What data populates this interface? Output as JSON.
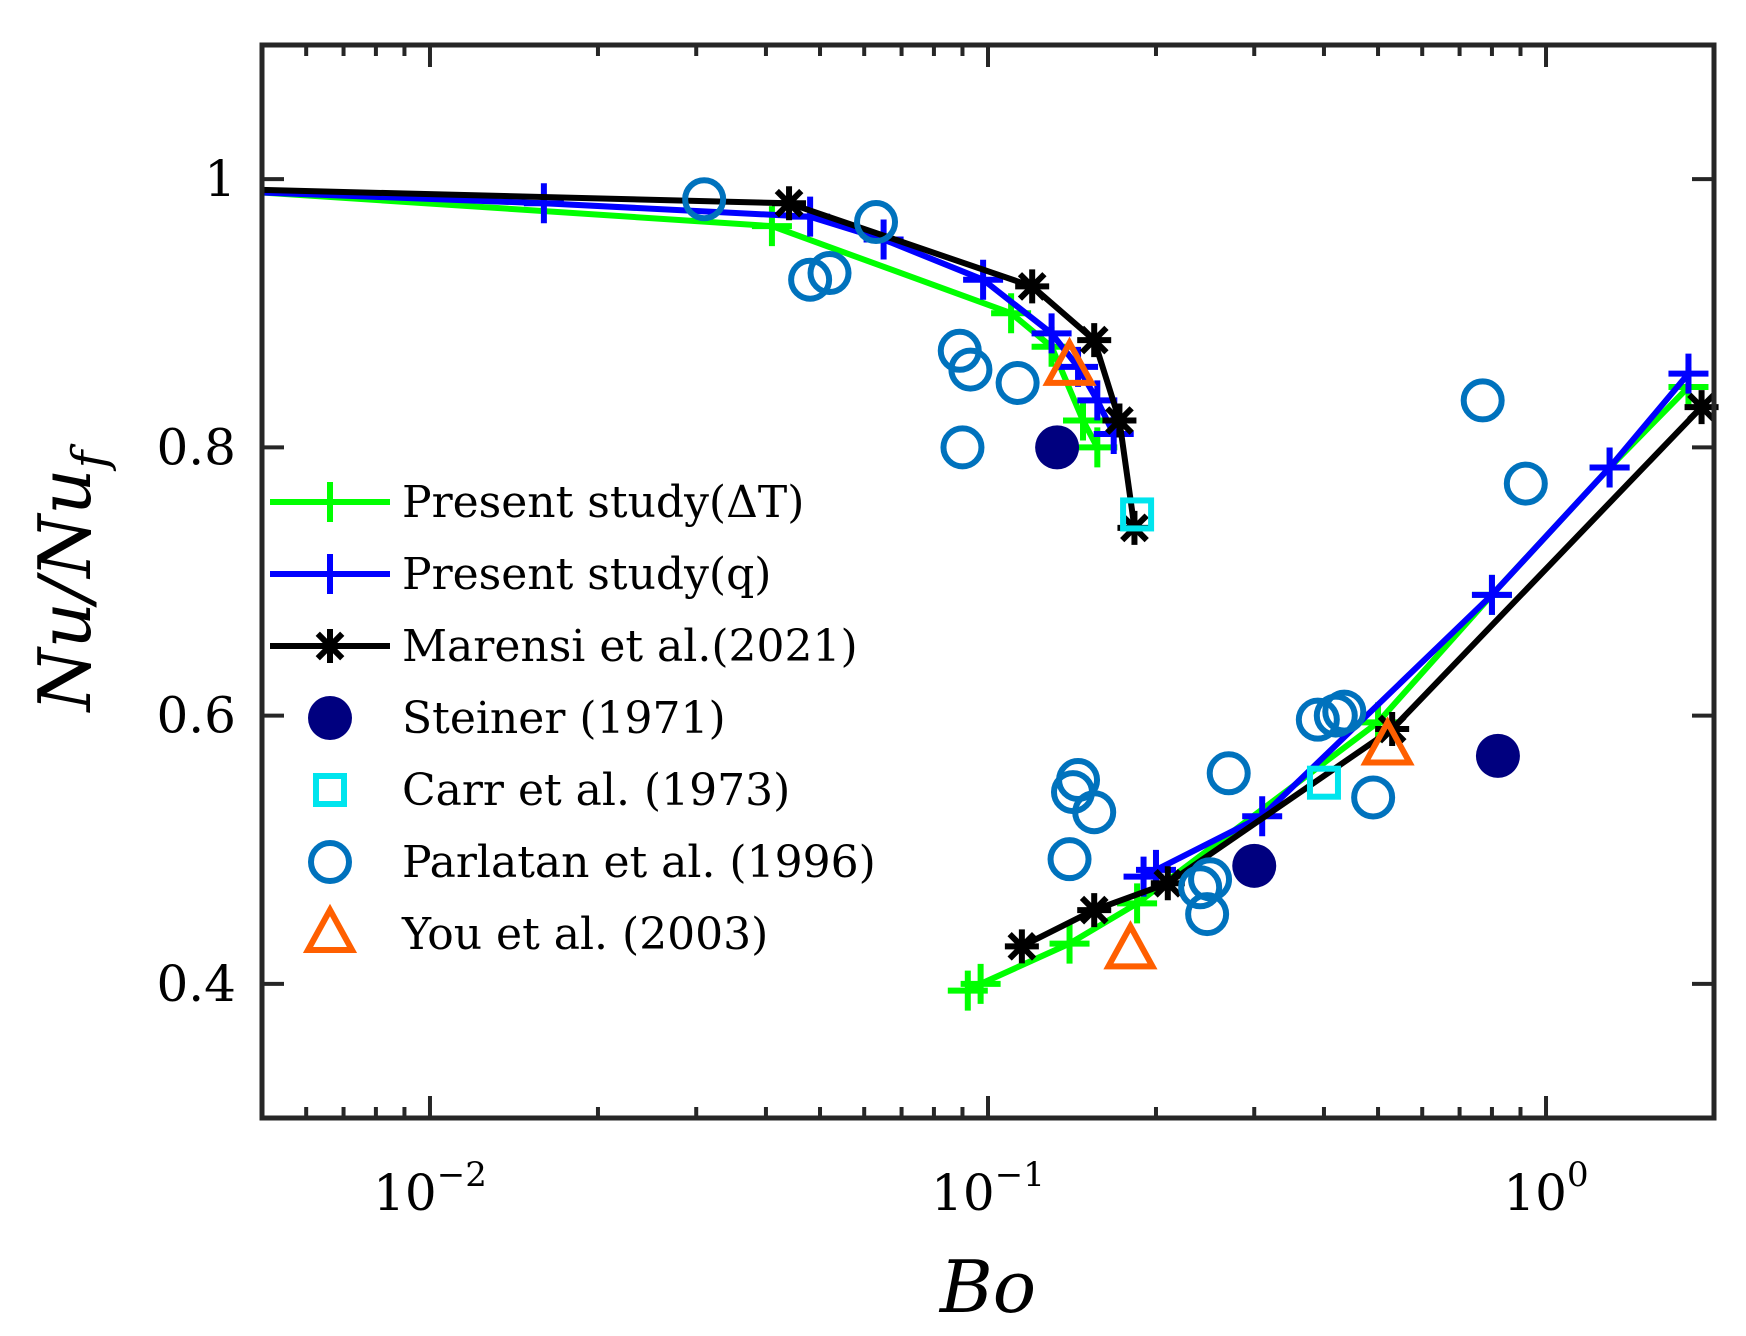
{
  "chart_data": {
    "type": "scatter",
    "title": "",
    "xlabel": "Bo",
    "ylabel": "Nu/Nu_f",
    "ylabel_parts": {
      "main": "Nu/Nu",
      "sub": "f"
    },
    "xscale": "log",
    "xlim": [
      0.005,
      2.0
    ],
    "ylim": [
      0.3,
      1.1
    ],
    "x_ticks": [
      {
        "value": 0.01,
        "base": "10",
        "exp": "−2"
      },
      {
        "value": 0.1,
        "base": "10",
        "exp": "−1"
      },
      {
        "value": 1,
        "base": "10",
        "exp": "0"
      }
    ],
    "y_ticks": [
      {
        "value": 0.4,
        "label": "0.4"
      },
      {
        "value": 0.6,
        "label": "0.6"
      },
      {
        "value": 0.8,
        "label": "0.8"
      },
      {
        "value": 1.0,
        "label": "1"
      }
    ],
    "grid": false,
    "legend_position": "left",
    "series": [
      {
        "name": "Present study(ΔT)",
        "color": "#00ff00",
        "marker": "plus",
        "line": true,
        "segments": [
          [
            [
              0.005,
              0.99
            ],
            [
              0.041,
              0.965
            ],
            [
              0.11,
              0.9
            ],
            [
              0.13,
              0.875
            ],
            [
              0.148,
              0.82
            ],
            [
              0.157,
              0.8
            ]
          ],
          [
            [
              0.092,
              0.395
            ],
            [
              0.097,
              0.4
            ],
            [
              0.14,
              0.43
            ],
            [
              0.185,
              0.46
            ],
            [
              0.5,
              0.595
            ],
            [
              0.8,
              0.69
            ],
            [
              1.3,
              0.785
            ],
            [
              1.8,
              0.845
            ]
          ]
        ]
      },
      {
        "name": "Present study(q)",
        "color": "#0000ff",
        "marker": "plus",
        "line": true,
        "segments": [
          [
            [
              0.005,
              0.99
            ],
            [
              0.016,
              0.982
            ],
            [
              0.048,
              0.972
            ],
            [
              0.065,
              0.955
            ],
            [
              0.098,
              0.925
            ],
            [
              0.13,
              0.885
            ],
            [
              0.145,
              0.86
            ],
            [
              0.157,
              0.835
            ],
            [
              0.168,
              0.81
            ]
          ],
          [
            [
              0.19,
              0.48
            ],
            [
              0.2,
              0.485
            ],
            [
              0.31,
              0.525
            ],
            [
              0.8,
              0.69
            ],
            [
              1.3,
              0.785
            ],
            [
              1.8,
              0.855
            ]
          ]
        ]
      },
      {
        "name": "Marensi et al.(2021)",
        "color": "#000000",
        "marker": "asterisk",
        "line": true,
        "segments": [
          [
            [
              0.005,
              0.992
            ],
            [
              0.044,
              0.982
            ],
            [
              0.12,
              0.92
            ],
            [
              0.155,
              0.88
            ],
            [
              0.172,
              0.82
            ],
            [
              0.183,
              0.74
            ]
          ],
          [
            [
              0.115,
              0.428
            ],
            [
              0.155,
              0.455
            ],
            [
              0.21,
              0.475
            ],
            [
              0.53,
              0.59
            ],
            [
              1.9,
              0.83
            ]
          ]
        ]
      },
      {
        "name": "Steiner (1971)",
        "color": "#00007f",
        "marker": "filled-circle",
        "line": false,
        "segments": [
          [
            [
              0.133,
              0.8
            ],
            [
              0.3,
              0.488
            ],
            [
              0.82,
              0.57
            ]
          ]
        ]
      },
      {
        "name": "Carr et al. (1973)",
        "color": "#00e5ee",
        "marker": "square",
        "line": false,
        "segments": [
          [
            [
              0.185,
              0.75
            ],
            [
              0.4,
              0.55
            ]
          ]
        ]
      },
      {
        "name": "Parlatan et al. (1996)",
        "color": "#0072bd",
        "marker": "open-circle",
        "line": false,
        "segments": [
          [
            [
              0.031,
              0.985
            ],
            [
              0.048,
              0.925
            ],
            [
              0.052,
              0.93
            ],
            [
              0.063,
              0.968
            ],
            [
              0.089,
              0.872
            ],
            [
              0.093,
              0.858
            ],
            [
              0.09,
              0.8
            ],
            [
              0.113,
              0.848
            ],
            [
              0.14,
              0.493
            ],
            [
              0.142,
              0.543
            ],
            [
              0.145,
              0.552
            ],
            [
              0.155,
              0.528
            ],
            [
              0.24,
              0.472
            ],
            [
              0.25,
              0.478
            ],
            [
              0.247,
              0.452
            ],
            [
              0.27,
              0.557
            ],
            [
              0.39,
              0.597
            ],
            [
              0.435,
              0.603
            ],
            [
              0.42,
              0.6
            ],
            [
              0.49,
              0.539
            ],
            [
              0.77,
              0.835
            ],
            [
              0.92,
              0.773
            ]
          ]
        ]
      },
      {
        "name": "You et al. (2003)",
        "color": "#ff5f00",
        "marker": "triangle",
        "line": false,
        "segments": [
          [
            [
              0.14,
              0.86
            ],
            [
              0.18,
              0.425
            ],
            [
              0.52,
              0.577
            ]
          ]
        ]
      }
    ]
  }
}
